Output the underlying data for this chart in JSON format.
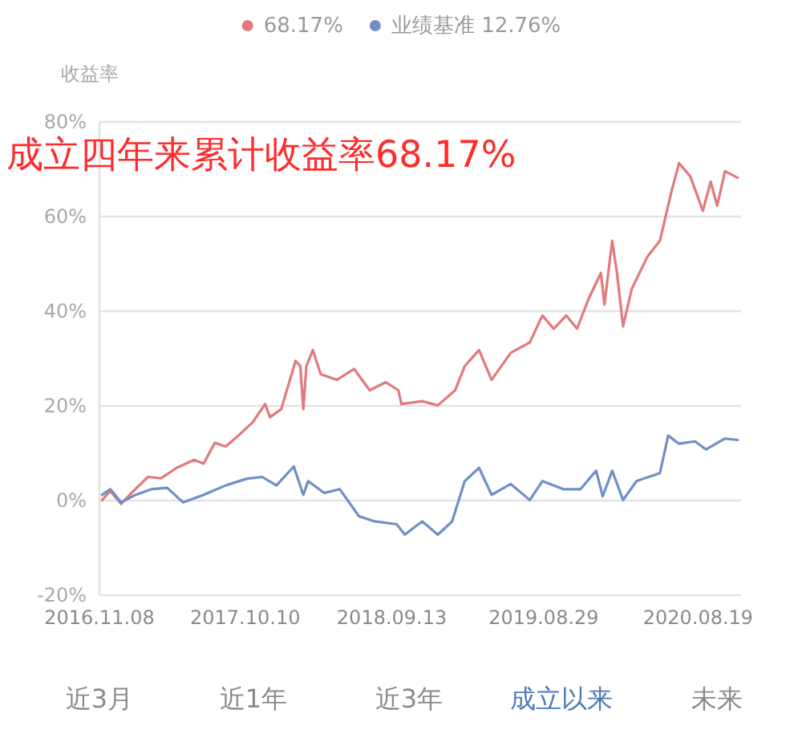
{
  "chart_data": {
    "type": "line",
    "title": "成立四年来累计收益率68.17%",
    "ylabel": "收益率",
    "xlim": [
      "2016-11-08",
      "2020-11-26"
    ],
    "xticks": [
      {
        "value": "2016-11-08",
        "label": "2016.11.08"
      },
      {
        "value": "2017-10-10",
        "label": "2017.10.10"
      },
      {
        "value": "2018-09-13",
        "label": "2018.09.13"
      },
      {
        "value": "2019-08-29",
        "label": "2019.08.29"
      },
      {
        "value": "2020-08-19",
        "label": "2020.08.19"
      }
    ],
    "ylim": [
      -20,
      80
    ],
    "yticks": [
      {
        "value": -20,
        "label": "-20%"
      },
      {
        "value": 0,
        "label": "0%"
      },
      {
        "value": 20,
        "label": "20%"
      },
      {
        "value": 40,
        "label": "40%"
      },
      {
        "value": 60,
        "label": "60%"
      },
      {
        "value": 80,
        "label": "80%"
      }
    ],
    "grid": "y",
    "legend": "top",
    "marker": "none",
    "line_style": "solid",
    "series": [
      {
        "name": "68.17%",
        "color": "#e07a7c",
        "x": [
          "2016-11-14",
          "2016-12-03",
          "2016-12-28",
          "2017-01-23",
          "2017-02-28",
          "2017-03-30",
          "2017-05-05",
          "2017-06-14",
          "2017-07-06",
          "2017-08-01",
          "2017-08-26",
          "2017-09-24",
          "2017-10-27",
          "2017-11-25",
          "2017-12-06",
          "2018-01-01",
          "2018-02-03",
          "2018-02-14",
          "2018-02-21",
          "2018-02-28",
          "2018-03-15",
          "2018-04-02",
          "2018-05-09",
          "2018-06-18",
          "2018-07-24",
          "2018-08-30",
          "2018-09-28",
          "2018-10-05",
          "2018-11-22",
          "2018-12-28",
          "2019-02-06",
          "2019-02-28",
          "2019-04-02",
          "2019-05-01",
          "2019-06-14",
          "2019-07-28",
          "2019-08-26",
          "2019-09-21",
          "2019-10-20",
          "2019-11-14",
          "2019-12-10",
          "2020-01-08",
          "2020-01-16",
          "2020-02-03",
          "2020-02-14",
          "2020-02-28",
          "2020-03-19",
          "2020-04-24",
          "2020-05-23",
          "2020-06-18",
          "2020-07-06",
          "2020-08-01",
          "2020-08-30",
          "2020-09-17",
          "2020-10-02",
          "2020-10-20",
          "2020-11-18"
        ],
        "values": [
          0.1,
          2,
          -0.7,
          1.8,
          5,
          4.7,
          6.9,
          8.6,
          7.8,
          12.2,
          11.4,
          13.7,
          16.5,
          20.4,
          17.6,
          19.3,
          29.5,
          28.4,
          19.3,
          28.4,
          31.8,
          26.7,
          25.5,
          27.8,
          23.3,
          25,
          23.3,
          20.4,
          21,
          20.1,
          23.3,
          28.4,
          31.8,
          25.5,
          31.2,
          33.4,
          39.1,
          36.3,
          39.1,
          36.3,
          42.5,
          48.1,
          41.4,
          54.9,
          48.1,
          36.8,
          44.7,
          51.5,
          54.9,
          65.1,
          71.3,
          68.5,
          61.2,
          67.4,
          62.3,
          69.6,
          68.2
        ]
      },
      {
        "name": "业绩基准 12.76%",
        "color": "#6f8fc6",
        "x": [
          "2016-11-14",
          "2016-12-03",
          "2016-12-28",
          "2017-01-30",
          "2017-03-08",
          "2017-04-13",
          "2017-05-20",
          "2017-07-06",
          "2017-08-26",
          "2017-10-13",
          "2017-11-18",
          "2017-12-21",
          "2018-01-30",
          "2018-02-21",
          "2018-03-04",
          "2018-04-10",
          "2018-05-16",
          "2018-06-29",
          "2018-08-04",
          "2018-09-24",
          "2018-10-13",
          "2018-11-22",
          "2018-12-28",
          "2019-01-30",
          "2019-02-28",
          "2019-04-02",
          "2019-05-01",
          "2019-06-14",
          "2019-07-28",
          "2019-08-26",
          "2019-10-13",
          "2019-11-22",
          "2019-12-28",
          "2020-01-12",
          "2020-02-03",
          "2020-02-28",
          "2020-03-30",
          "2020-05-23",
          "2020-06-11",
          "2020-07-06",
          "2020-08-12",
          "2020-09-06",
          "2020-10-20",
          "2020-11-18"
        ],
        "values": [
          1.2,
          2.4,
          -0.4,
          1.2,
          2.4,
          2.7,
          -0.4,
          1.2,
          3.2,
          4.6,
          5,
          3.2,
          7.2,
          1.2,
          4.1,
          1.6,
          2.4,
          -3.3,
          -4.4,
          -5,
          -7.2,
          -4.4,
          -7.2,
          -4.4,
          4.1,
          6.9,
          1.2,
          3.5,
          0.1,
          4.1,
          2.4,
          2.4,
          6.3,
          0.9,
          6.3,
          0.1,
          4.1,
          5.8,
          13.7,
          12,
          12.5,
          10.8,
          13.1,
          12.8
        ]
      }
    ],
    "annotations": [
      "近3月",
      "近1年",
      "近3年",
      "成立以来",
      "未来"
    ]
  }
}
